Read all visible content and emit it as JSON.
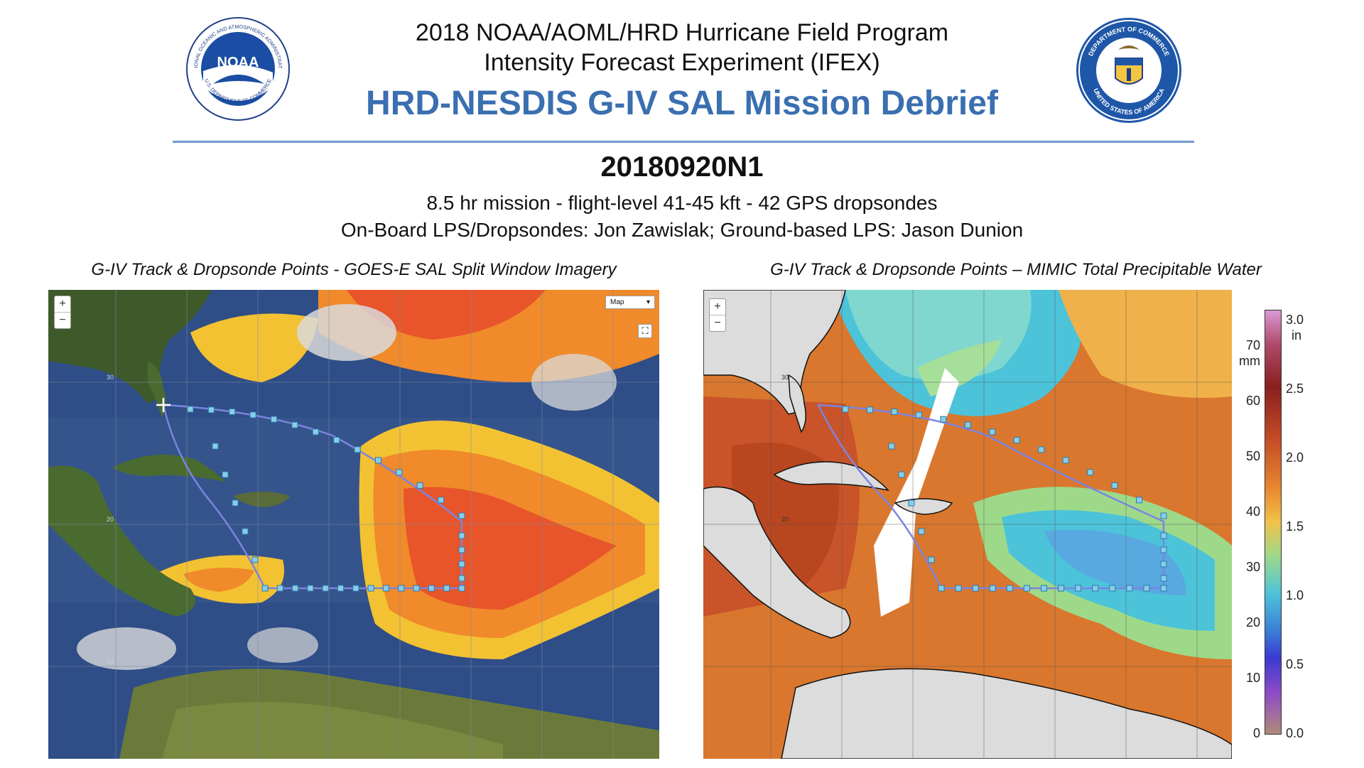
{
  "header": {
    "line1": "2018 NOAA/AOML/HRD Hurricane Field Program",
    "line2": "Intensity Forecast Experiment (IFEX)",
    "title": "HRD-NESDIS G-IV SAL Mission Debrief"
  },
  "logos": {
    "noaa": {
      "label": "NOAA",
      "ring_text_top": "NATIONAL OCEANIC AND ATMOSPHERIC ADMINISTRATION",
      "ring_text_bottom": "U.S. DEPARTMENT OF COMMERCE"
    },
    "doc": {
      "ring_text_top": "DEPARTMENT OF COMMERCE",
      "ring_text_bottom": "UNITED STATES OF AMERICA"
    }
  },
  "mission": {
    "id": "20180920N1",
    "summary": "8.5 hr mission - flight-level 41-45 kft - 42 GPS dropsondes",
    "crew": "On-Board LPS/Dropsondes: Jon Zawislak; Ground-based LPS: Jason Dunion"
  },
  "panels": {
    "left": {
      "caption": "G-IV Track & Dropsonde Points - GOES-E SAL Split Window Imagery",
      "zoom_in": "+",
      "zoom_out": "−",
      "map_type": "Map",
      "grid_labels": [
        "30",
        "20",
        "10"
      ]
    },
    "right": {
      "caption": "G-IV Track & Dropsonde Points – MIMIC Total Precipitable Water",
      "zoom_in": "+",
      "zoom_out": "−",
      "grid_labels": [
        "30",
        "20"
      ],
      "colorbar": {
        "mm_unit": "mm",
        "in_unit": "in",
        "mm_ticks": [
          "70",
          "60",
          "50",
          "40",
          "30",
          "20",
          "10",
          "0"
        ],
        "in_ticks": [
          "3.0",
          "2.5",
          "2.0",
          "1.5",
          "1.0",
          "0.5",
          "0.0"
        ]
      }
    }
  },
  "colors": {
    "title_blue": "#3a6fb0",
    "rule_blue": "#6f9bd1",
    "track": "#7b84e0",
    "sonde_box": "#86cfe6"
  }
}
